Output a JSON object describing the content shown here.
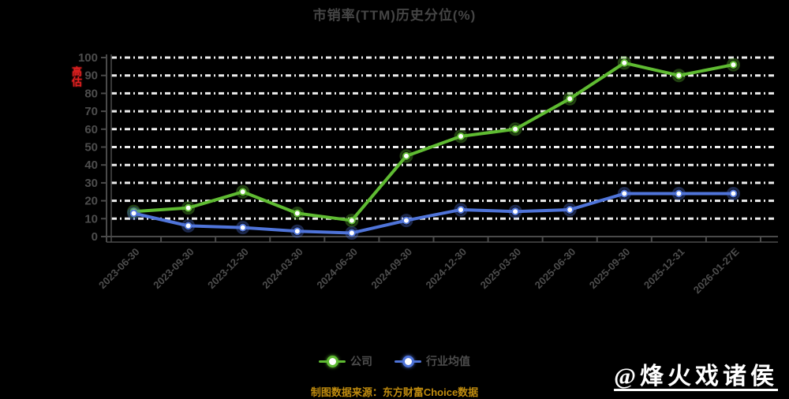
{
  "title": "市销率(TTM)历史分位(%)",
  "overvalued_badge": "高估",
  "watermark": "@烽火戏诸侯",
  "footer_note": "制图数据来源：东方财富Choice数据",
  "legend": [
    {
      "label": "公司",
      "color": "#5fbb32"
    },
    {
      "label": "行业均值",
      "color": "#4f74d9"
    }
  ],
  "colors": {
    "background": "#000000",
    "title_text": "#454545",
    "axis_label_text": "#4d4d4d",
    "axis_line": "#4a4a4a",
    "gridline": "#ededed",
    "company_green": "#5fbb32",
    "industry_blue": "#4f74d9",
    "badge_red": "#e02020",
    "footer_orange": "#bf8b0e",
    "watermark_white": "#ffffff"
  },
  "chart_data": {
    "type": "line",
    "title": "市销率(TTM)历史分位(%)",
    "categories": [
      "2023-06-30",
      "2023-09-30",
      "2023-12-30",
      "2024-03-30",
      "2024-06-30",
      "2024-09-30",
      "2024-12-30",
      "2025-03-30",
      "2025-06-30",
      "2025-09-30",
      "2025-12-31",
      "2026-01-27E"
    ],
    "series": [
      {
        "name": "公司",
        "color": "#5fbb32",
        "values": [
          14,
          16,
          25,
          13,
          9,
          45,
          56,
          60,
          77,
          97,
          90,
          96
        ]
      },
      {
        "name": "行业均值",
        "color": "#4f74d9",
        "values": [
          13,
          6,
          5,
          3,
          2,
          9,
          15,
          14,
          15,
          24,
          24,
          24
        ]
      }
    ],
    "xlabel": "",
    "ylabel": "",
    "ylim": [
      0,
      100
    ],
    "yticks": [
      0,
      10,
      20,
      30,
      40,
      50,
      60,
      70,
      80,
      90,
      100
    ],
    "grid": "dashed-white-horizontal",
    "legend_position": "bottom",
    "x_label_rotation": -45
  }
}
